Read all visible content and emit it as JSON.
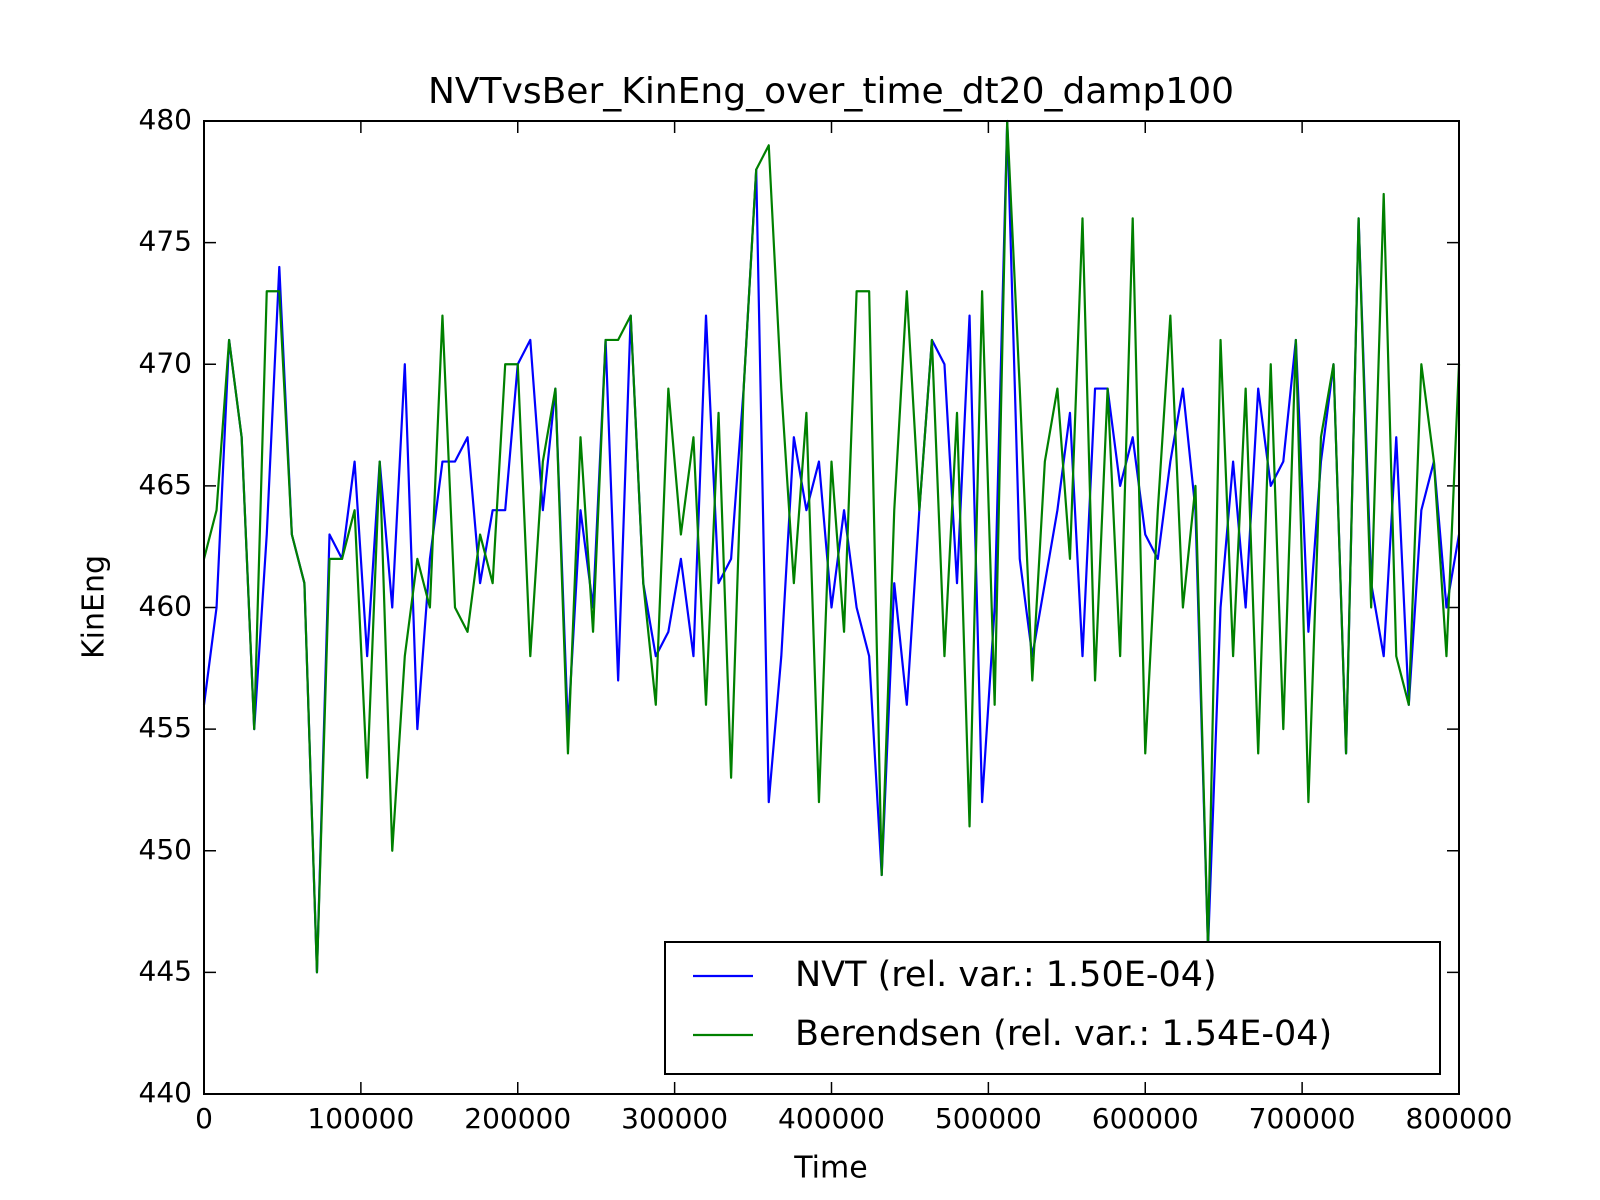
{
  "chart_data": {
    "type": "line",
    "title": "NVTvsBer_KinEng_over_time_dt20_damp100",
    "x_label": "Time",
    "y_label": "KinEng",
    "x": [
      0,
      8000,
      16000,
      24000,
      32000,
      40000,
      48000,
      56000,
      64000,
      72000,
      80000,
      88000,
      96000,
      104000,
      112000,
      120000,
      128000,
      136000,
      144000,
      152000,
      160000,
      168000,
      176000,
      184000,
      192000,
      200000,
      208000,
      216000,
      224000,
      232000,
      240000,
      248000,
      256000,
      264000,
      272000,
      280000,
      288000,
      296000,
      304000,
      312000,
      320000,
      328000,
      336000,
      344000,
      352000,
      360000,
      368000,
      376000,
      384000,
      392000,
      400000,
      408000,
      416000,
      424000,
      432000,
      440000,
      448000,
      456000,
      464000,
      472000,
      480000,
      488000,
      496000,
      504000,
      512000,
      520000,
      528000,
      536000,
      544000,
      552000,
      560000,
      568000,
      576000,
      584000,
      592000,
      600000,
      608000,
      616000,
      624000,
      632000,
      640000,
      648000,
      656000,
      664000,
      672000,
      680000,
      688000,
      696000,
      704000,
      712000,
      720000,
      728000,
      736000,
      744000,
      752000,
      760000,
      768000,
      776000,
      784000,
      792000,
      800000
    ],
    "series": [
      {
        "name": "NVT (rel. var.: 1.50E-04)",
        "color": "#0000ff",
        "values": [
          456,
          460,
          471,
          467,
          455,
          463,
          474,
          463,
          461,
          445,
          463,
          462,
          466,
          458,
          466,
          460,
          470,
          455,
          462,
          466,
          466,
          467,
          461,
          464,
          464,
          470,
          471,
          464,
          469,
          455,
          464,
          460,
          471,
          457,
          472,
          461,
          458,
          459,
          462,
          458,
          472,
          461,
          462,
          469,
          478,
          452,
          458,
          467,
          464,
          466,
          460,
          464,
          460,
          458,
          449,
          461,
          456,
          464,
          471,
          470,
          461,
          472,
          452,
          460,
          480,
          462,
          458,
          461,
          464,
          468,
          458,
          469,
          469,
          465,
          467,
          463,
          462,
          466,
          469,
          464,
          446,
          460,
          466,
          460,
          469,
          465,
          466,
          471,
          459,
          466,
          470,
          454,
          476,
          461,
          458,
          467,
          456,
          464,
          466,
          460,
          463
        ]
      },
      {
        "name": "Berendsen (rel. var.: 1.54E-04)",
        "color": "#008000",
        "values": [
          462,
          464,
          471,
          467,
          455,
          473,
          473,
          463,
          461,
          445,
          462,
          462,
          464,
          453,
          466,
          450,
          458,
          462,
          460,
          472,
          460,
          459,
          463,
          461,
          470,
          470,
          458,
          466,
          469,
          454,
          467,
          459,
          471,
          471,
          472,
          461,
          456,
          469,
          463,
          467,
          456,
          468,
          453,
          469,
          478,
          479,
          469,
          461,
          468,
          452,
          466,
          459,
          473,
          473,
          449,
          464,
          473,
          464,
          471,
          458,
          468,
          451,
          473,
          456,
          480,
          469,
          457,
          466,
          469,
          462,
          476,
          457,
          469,
          458,
          476,
          454,
          464,
          472,
          460,
          465,
          446,
          471,
          458,
          469,
          454,
          470,
          455,
          471,
          452,
          467,
          470,
          454,
          476,
          460,
          477,
          458,
          456,
          470,
          466,
          458,
          470
        ]
      }
    ],
    "xlim": [
      0,
      800000
    ],
    "ylim": [
      440,
      480
    ],
    "xticks": [
      0,
      100000,
      200000,
      300000,
      400000,
      500000,
      600000,
      700000,
      800000
    ],
    "yticks": [
      440,
      445,
      450,
      455,
      460,
      465,
      470,
      475,
      480
    ],
    "legend": "lower right"
  }
}
